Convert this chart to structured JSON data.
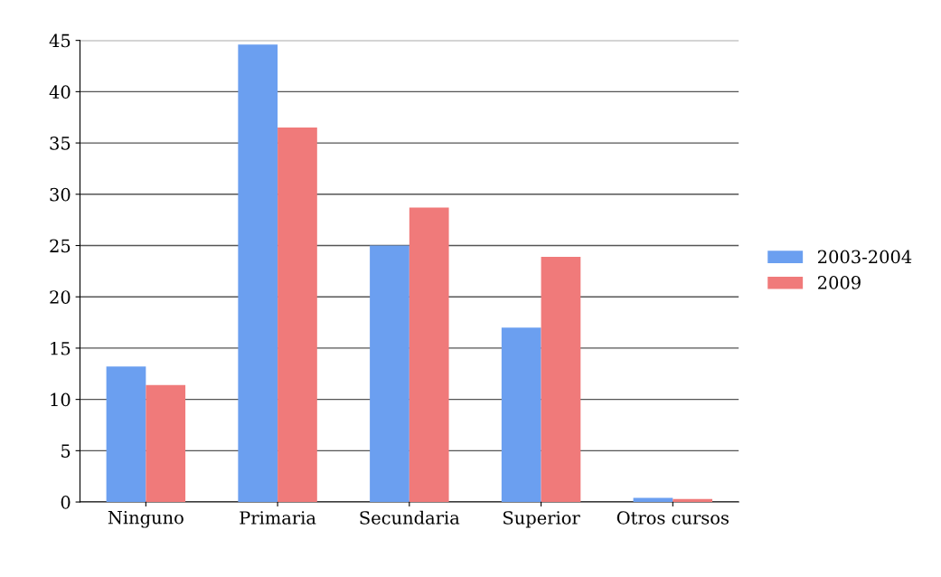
{
  "chart_data": {
    "type": "bar",
    "categories": [
      "Ninguno",
      "Primaria",
      "Secundaria",
      "Superior",
      "Otros cursos"
    ],
    "series": [
      {
        "name": "2003-2004",
        "color": "#6b9ff0",
        "values": [
          13.2,
          44.6,
          25,
          17,
          0.4
        ]
      },
      {
        "name": "2009",
        "color": "#f07a7a",
        "values": [
          11.4,
          36.5,
          28.7,
          23.9,
          0.3
        ]
      }
    ],
    "ylim": [
      0,
      45
    ],
    "yticks": [
      0,
      5,
      10,
      15,
      20,
      25,
      30,
      35,
      40,
      45
    ],
    "grid": "y",
    "legend": "right"
  }
}
